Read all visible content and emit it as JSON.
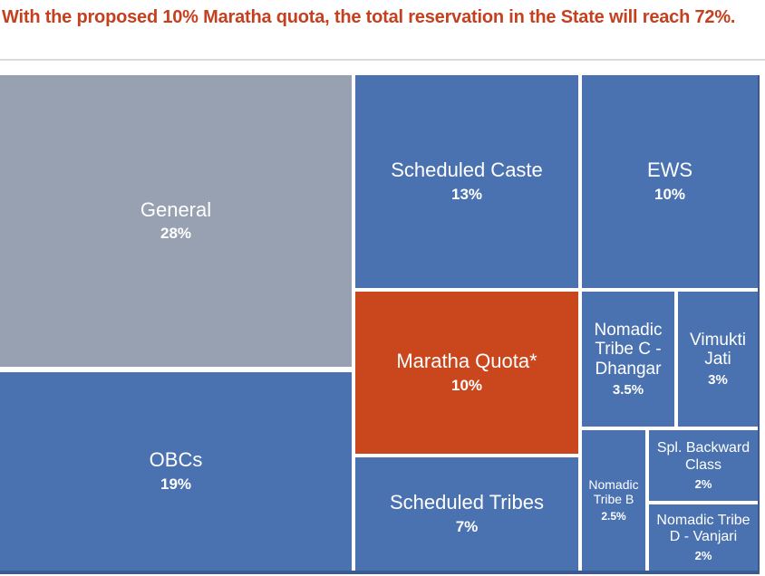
{
  "header": {
    "title": "With the proposed 10% Maratha quota, the total reservation in the State will reach 72%."
  },
  "colors": {
    "title_text": "#c5401f",
    "cell_blue": "#4a71b0",
    "cell_gray": "#98a1b1",
    "cell_orange": "#ca461d",
    "chart_edge": "#3a5b90",
    "divider": "#dcdcdc",
    "cell_text": "#ffffff"
  },
  "chart_data": {
    "type": "treemap",
    "title": "With the proposed 10% Maratha quota, the total reservation in the State will reach 72%.",
    "total_reservation": "72%",
    "legend_position": "none",
    "items": [
      {
        "label": "General",
        "value": 28,
        "value_label": "28%",
        "color": "#98a1b1"
      },
      {
        "label": "OBCs",
        "value": 19,
        "value_label": "19%",
        "color": "#4a71b0"
      },
      {
        "label": "Scheduled Caste",
        "value": 13,
        "value_label": "13%",
        "color": "#4a71b0"
      },
      {
        "label": "EWS",
        "value": 10,
        "value_label": "10%",
        "color": "#4a71b0"
      },
      {
        "label": "Maratha Quota*",
        "value": 10,
        "value_label": "10%",
        "color": "#ca461d"
      },
      {
        "label": "Scheduled Tribes",
        "value": 7,
        "value_label": "7%",
        "color": "#4a71b0"
      },
      {
        "label": "Nomadic Tribe C - Dhangar",
        "value": 3.5,
        "value_label": "3.5%",
        "color": "#4a71b0"
      },
      {
        "label": "Vimukti Jati",
        "value": 3,
        "value_label": "3%",
        "color": "#4a71b0"
      },
      {
        "label": "Nomadic Tribe B",
        "value": 2.5,
        "value_label": "2.5%",
        "color": "#4a71b0"
      },
      {
        "label": "Spl. Backward Class",
        "value": 2,
        "value_label": "2%",
        "color": "#4a71b0"
      },
      {
        "label": "Nomadic Tribe D - Vanjari",
        "value": 2,
        "value_label": "2%",
        "color": "#4a71b0"
      }
    ]
  }
}
